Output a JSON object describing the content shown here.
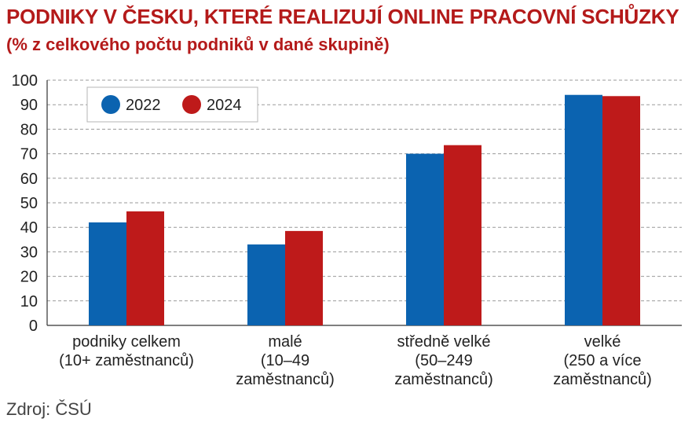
{
  "header": {
    "title": "PODNIKY V ČESKU, KTERÉ REALIZUJÍ ONLINE PRACOVNÍ SCHŮZKY",
    "subtitle": "(% z celkového počtu podniků v dané skupině)"
  },
  "footer": {
    "source": "Zdroj: ČSÚ"
  },
  "colors": {
    "title": "#b41a1a",
    "series_2022": "#0b63b0",
    "series_2024": "#be1a1a",
    "grid": "#9a9a9a",
    "axis": "#333333"
  },
  "chart_data": {
    "type": "bar",
    "categories": [
      [
        "podniky celkem",
        "(10+ zaměstnanců)"
      ],
      [
        "malé",
        "(10–49",
        "zaměstnanců)"
      ],
      [
        "středně velké",
        "(50–249",
        "zaměstnanců)"
      ],
      [
        "velké",
        "(250 a více",
        "zaměstnanců)"
      ]
    ],
    "series": [
      {
        "name": "2022",
        "values": [
          42,
          33,
          70,
          94
        ],
        "color": "#0b63b0"
      },
      {
        "name": "2024",
        "values": [
          46.5,
          38.5,
          73.5,
          93.5
        ],
        "color": "#be1a1a"
      }
    ],
    "ylim": [
      0,
      100
    ],
    "yticks": [
      0,
      10,
      20,
      30,
      40,
      50,
      60,
      70,
      80,
      90,
      100
    ],
    "grid": "horizontal dashed",
    "legend_position": "top-left"
  }
}
